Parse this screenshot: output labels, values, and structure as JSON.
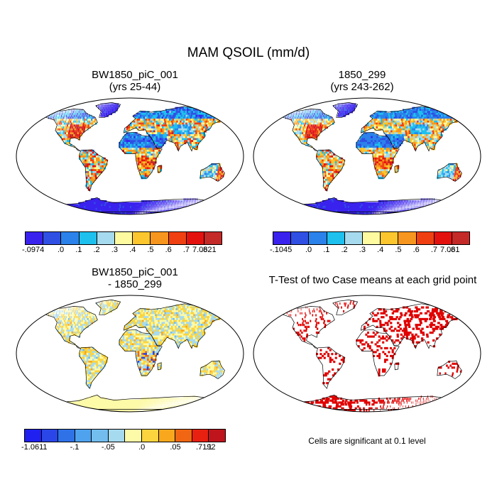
{
  "figure": {
    "title": "MAM QSOIL (mm/d)",
    "note": "Cells are significant at 0.1 level"
  },
  "palettes": {
    "seq": [
      "#3a22ee",
      "#3050e4",
      "#2b82ea",
      "#1ec0ee",
      "#a6daee",
      "#fdfaa0",
      "#fbc62e",
      "#f7961e",
      "#f04012",
      "#e3120f",
      "#c32a28"
    ],
    "diff": [
      "#2020f0",
      "#2a46e8",
      "#2f72e8",
      "#4ea2ee",
      "#72bcee",
      "#a6daee",
      "#fdfaa8",
      "#fbd43e",
      "#f9a81e",
      "#f06612",
      "#e82010",
      "#c0141c"
    ]
  },
  "chart_data": [
    {
      "type": "heatmap",
      "id": "case1",
      "title_line1": "BW1850_piC_001",
      "title_line2": "(yrs 25-44)",
      "colorbar_labels": [
        "-.0974",
        ".0",
        ".1",
        ".2",
        ".3",
        ".4",
        ".5",
        ".6",
        ".7",
        ".8",
        "7.0621"
      ],
      "palette": "seq"
    },
    {
      "type": "heatmap",
      "id": "case2",
      "title_line1": "1850_299",
      "title_line2": "(yrs 243-262)",
      "colorbar_labels": [
        "-.1045",
        ".0",
        ".1",
        ".2",
        ".3",
        ".4",
        ".5",
        ".6",
        ".7",
        ".8",
        "7.061"
      ],
      "palette": "seq"
    },
    {
      "type": "heatmap",
      "id": "diff",
      "title_line1": "BW1850_piC_001",
      "title_line2": "- 1850_299",
      "colorbar_labels": [
        "-1.0611",
        "",
        "-.1",
        "",
        "-.05",
        "",
        ".0",
        "",
        ".05",
        "",
        ".1",
        "",
        ".7192"
      ],
      "palette": "diff"
    },
    {
      "type": "heatmap",
      "id": "ttest",
      "title_line1": "T-Test of two Case means at each grid point",
      "significant_color": "#e00000"
    }
  ]
}
